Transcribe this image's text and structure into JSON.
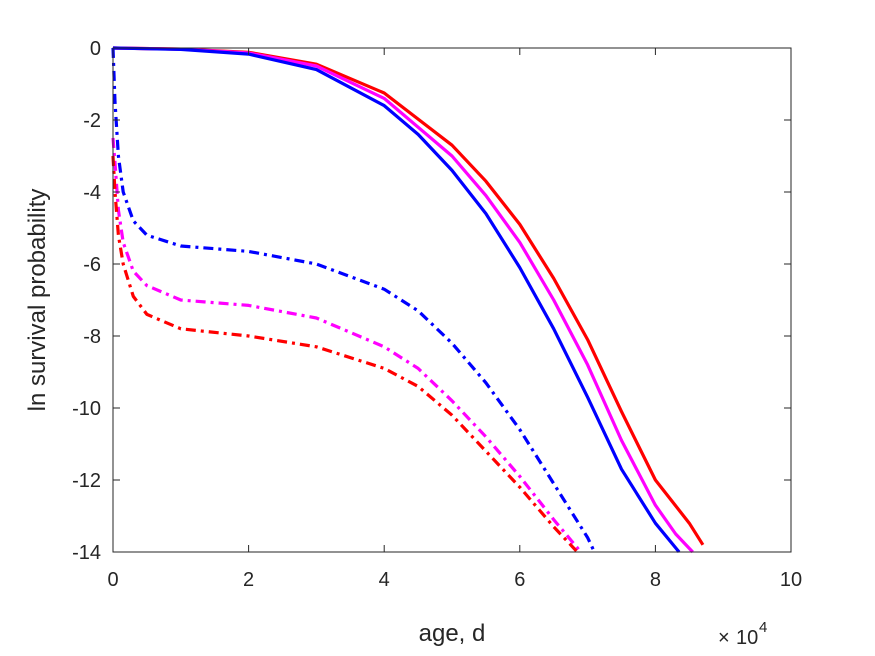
{
  "chart_data": {
    "type": "line",
    "xlabel": "age, d",
    "ylabel": "ln survival probability",
    "x_exponent": {
      "base": "10",
      "power": "4",
      "symbol": "×"
    },
    "xlim": [
      0,
      100000
    ],
    "ylim": [
      -14,
      0
    ],
    "xticks": [
      0,
      20000,
      40000,
      60000,
      80000,
      100000
    ],
    "xtick_labels": [
      "0",
      "2",
      "4",
      "6",
      "8",
      "10"
    ],
    "yticks": [
      0,
      -2,
      -4,
      -6,
      -8,
      -10,
      -12,
      -14
    ],
    "ytick_labels": [
      "0",
      "-2",
      "-4",
      "-6",
      "-8",
      "-10",
      "-12",
      "-14"
    ],
    "grid": false,
    "series": [
      {
        "color": "#ff0000",
        "style": "solid",
        "points": [
          [
            0,
            0
          ],
          [
            10000,
            -0.03
          ],
          [
            20000,
            -0.12
          ],
          [
            30000,
            -0.45
          ],
          [
            40000,
            -1.25
          ],
          [
            50000,
            -2.7
          ],
          [
            55000,
            -3.7
          ],
          [
            60000,
            -4.9
          ],
          [
            65000,
            -6.4
          ],
          [
            70000,
            -8.1
          ],
          [
            75000,
            -10.1
          ],
          [
            80000,
            -12.0
          ],
          [
            85000,
            -13.2
          ],
          [
            87000,
            -13.8
          ]
        ]
      },
      {
        "color": "#ff00ff",
        "style": "solid",
        "points": [
          [
            0,
            0
          ],
          [
            10000,
            -0.03
          ],
          [
            20000,
            -0.14
          ],
          [
            30000,
            -0.5
          ],
          [
            40000,
            -1.4
          ],
          [
            50000,
            -3.0
          ],
          [
            55000,
            -4.1
          ],
          [
            60000,
            -5.4
          ],
          [
            65000,
            -7.0
          ],
          [
            70000,
            -8.8
          ],
          [
            75000,
            -10.9
          ],
          [
            80000,
            -12.7
          ],
          [
            83000,
            -13.5
          ],
          [
            85500,
            -14
          ]
        ]
      },
      {
        "color": "#0000ff",
        "style": "solid",
        "points": [
          [
            0,
            0
          ],
          [
            10000,
            -0.04
          ],
          [
            20000,
            -0.17
          ],
          [
            30000,
            -0.6
          ],
          [
            40000,
            -1.6
          ],
          [
            45000,
            -2.4
          ],
          [
            50000,
            -3.4
          ],
          [
            55000,
            -4.6
          ],
          [
            60000,
            -6.1
          ],
          [
            65000,
            -7.8
          ],
          [
            70000,
            -9.7
          ],
          [
            75000,
            -11.7
          ],
          [
            80000,
            -13.2
          ],
          [
            83500,
            -14
          ]
        ]
      },
      {
        "color": "#0000ff",
        "style": "dashdot",
        "points": [
          [
            0,
            0
          ],
          [
            300,
            -1.5
          ],
          [
            800,
            -3.0
          ],
          [
            1500,
            -4.0
          ],
          [
            3000,
            -4.8
          ],
          [
            5000,
            -5.2
          ],
          [
            10000,
            -5.5
          ],
          [
            20000,
            -5.65
          ],
          [
            30000,
            -6.0
          ],
          [
            40000,
            -6.7
          ],
          [
            45000,
            -7.3
          ],
          [
            50000,
            -8.2
          ],
          [
            55000,
            -9.3
          ],
          [
            60000,
            -10.6
          ],
          [
            65000,
            -12.1
          ],
          [
            70000,
            -13.6
          ],
          [
            71000,
            -14
          ]
        ]
      },
      {
        "color": "#ff00ff",
        "style": "dashdot",
        "points": [
          [
            0,
            -2.5
          ],
          [
            300,
            -3.2
          ],
          [
            800,
            -4.5
          ],
          [
            1500,
            -5.4
          ],
          [
            3000,
            -6.2
          ],
          [
            5000,
            -6.6
          ],
          [
            10000,
            -7.0
          ],
          [
            20000,
            -7.15
          ],
          [
            30000,
            -7.5
          ],
          [
            40000,
            -8.3
          ],
          [
            45000,
            -8.9
          ],
          [
            50000,
            -9.8
          ],
          [
            55000,
            -10.8
          ],
          [
            60000,
            -11.9
          ],
          [
            65000,
            -13.1
          ],
          [
            69000,
            -14
          ]
        ]
      },
      {
        "color": "#ff0000",
        "style": "dashdot",
        "points": [
          [
            0,
            -3.0
          ],
          [
            300,
            -4.0
          ],
          [
            800,
            -5.2
          ],
          [
            1500,
            -6.0
          ],
          [
            3000,
            -6.9
          ],
          [
            5000,
            -7.4
          ],
          [
            10000,
            -7.8
          ],
          [
            20000,
            -8.0
          ],
          [
            30000,
            -8.3
          ],
          [
            40000,
            -8.9
          ],
          [
            45000,
            -9.4
          ],
          [
            50000,
            -10.2
          ],
          [
            55000,
            -11.2
          ],
          [
            60000,
            -12.2
          ],
          [
            65000,
            -13.3
          ],
          [
            68500,
            -14
          ]
        ]
      }
    ]
  }
}
